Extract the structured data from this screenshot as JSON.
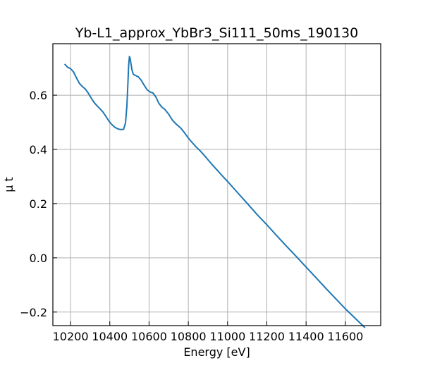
{
  "chart_data": {
    "type": "line",
    "title": "Yb-L1_approx_YbBr3_Si111_50ms_190130",
    "xlabel": "Energy [eV]",
    "ylabel": "μ t",
    "xlim": [
      10110,
      11780
    ],
    "ylim": [
      -0.25,
      0.79
    ],
    "grid": true,
    "legend": "none",
    "xticks": [
      10200,
      10400,
      10600,
      10800,
      11000,
      11200,
      11400,
      11600
    ],
    "xtick_labels": [
      "10200",
      "10400",
      "10600",
      "10800",
      "11000",
      "11200",
      "11400",
      "11600"
    ],
    "yticks": [
      -0.2,
      0.0,
      0.2,
      0.4,
      0.6
    ],
    "ytick_labels": [
      "−0.2",
      "0.0",
      "0.2",
      "0.4",
      "0.6"
    ],
    "series": [
      {
        "color": "#1f77b4",
        "x": [
          10170,
          10185,
          10200,
          10215,
          10230,
          10245,
          10260,
          10275,
          10290,
          10305,
          10320,
          10335,
          10350,
          10365,
          10380,
          10395,
          10410,
          10425,
          10440,
          10455,
          10470,
          10480,
          10487,
          10492,
          10496,
          10500,
          10504,
          10508,
          10513,
          10520,
          10530,
          10545,
          10560,
          10575,
          10590,
          10605,
          10620,
          10635,
          10650,
          10665,
          10680,
          10700,
          10720,
          10740,
          10760,
          10780,
          10800,
          10820,
          10840,
          10860,
          10880,
          10900,
          10920,
          10940,
          10960,
          10980,
          11000,
          11050,
          11100,
          11150,
          11200,
          11250,
          11300,
          11350,
          11400,
          11450,
          11500,
          11550,
          11600,
          11650,
          11700
        ],
        "y": [
          0.715,
          0.703,
          0.698,
          0.686,
          0.664,
          0.644,
          0.632,
          0.623,
          0.608,
          0.59,
          0.573,
          0.561,
          0.55,
          0.538,
          0.522,
          0.505,
          0.492,
          0.482,
          0.476,
          0.473,
          0.474,
          0.497,
          0.56,
          0.64,
          0.71,
          0.743,
          0.735,
          0.715,
          0.693,
          0.677,
          0.673,
          0.668,
          0.655,
          0.637,
          0.62,
          0.612,
          0.608,
          0.593,
          0.57,
          0.556,
          0.548,
          0.53,
          0.507,
          0.492,
          0.48,
          0.462,
          0.442,
          0.425,
          0.409,
          0.395,
          0.379,
          0.362,
          0.345,
          0.329,
          0.313,
          0.297,
          0.282,
          0.241,
          0.201,
          0.16,
          0.122,
          0.082,
          0.043,
          0.005,
          -0.034,
          -0.073,
          -0.112,
          -0.15,
          -0.188,
          -0.223,
          -0.258
        ]
      }
    ]
  }
}
